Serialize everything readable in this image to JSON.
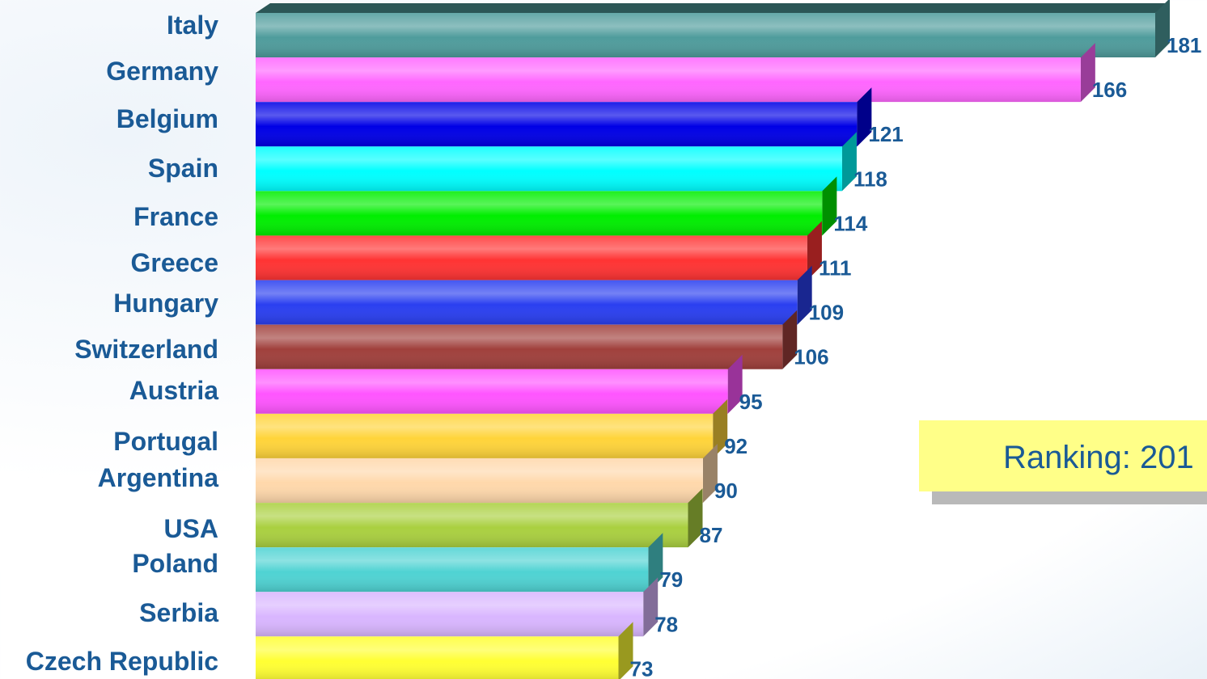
{
  "chart_data": {
    "type": "bar",
    "orientation": "horizontal",
    "categories": [
      "Italy",
      "Germany",
      "Belgium",
      "Spain",
      "France",
      "Greece",
      "Hungary",
      "Switzerland",
      "Austria",
      "Portugal",
      "Argentina",
      "USA",
      "Poland",
      "Serbia",
      "Czech Republic"
    ],
    "values": [
      181,
      166,
      121,
      118,
      114,
      111,
      109,
      106,
      95,
      92,
      90,
      87,
      79,
      78,
      73
    ],
    "colors": [
      "#4f9c9c",
      "#ff66ff",
      "#0000e6",
      "#00ffff",
      "#00ee00",
      "#ff3333",
      "#2a3ff0",
      "#a0403c",
      "#ff55ff",
      "#ffd43a",
      "#ffd8ab",
      "#aad040",
      "#4fd3d3",
      "#d9b6ff",
      "#ffff33"
    ],
    "xlim": [
      0,
      185
    ]
  },
  "annotation": {
    "text": "Ranking: 201",
    "background": "#ffff88"
  }
}
